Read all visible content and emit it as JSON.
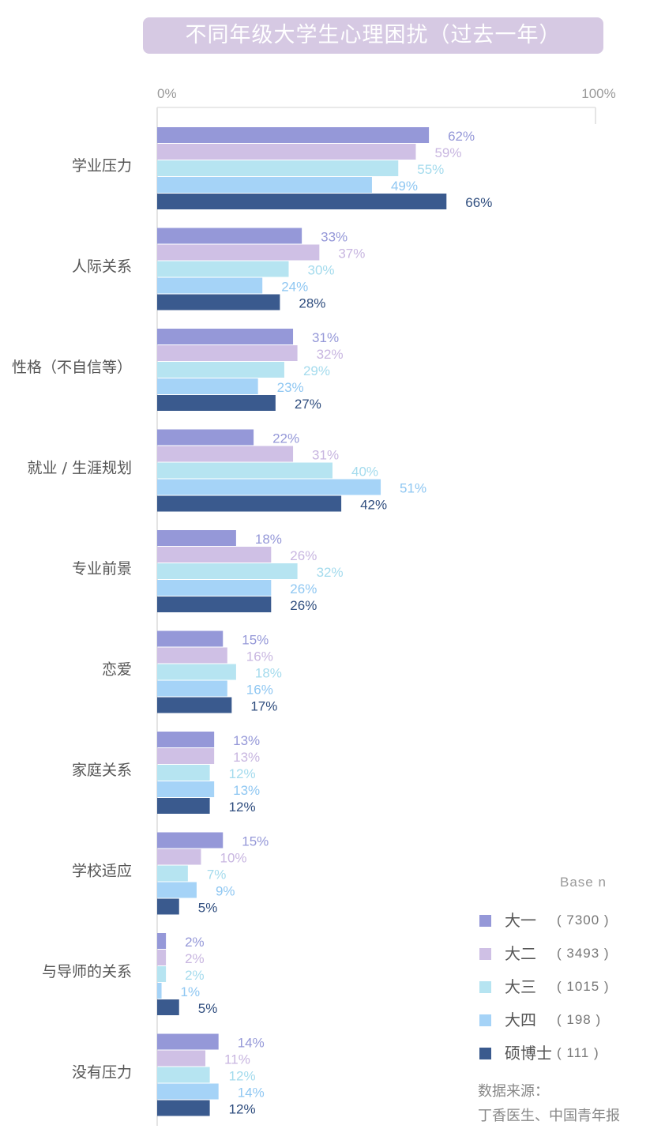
{
  "title": "不同年级大学生心理困扰（过去一年）",
  "chart_data": {
    "type": "bar",
    "orientation": "horizontal",
    "xlim": [
      0,
      100
    ],
    "tick_labels": [
      "0%",
      "100%"
    ],
    "categories": [
      "学业压力",
      "人际关系",
      "性格（不自信等）",
      "就业 / 生涯规划",
      "专业前景",
      "恋爱",
      "家庭关系",
      "学校适应",
      "与导师的关系",
      "没有压力"
    ],
    "series": [
      {
        "name": "大一",
        "n": "( 7300 )",
        "color": "#9598d8",
        "label_color": "#9598d8",
        "values": [
          62,
          33,
          31,
          22,
          18,
          15,
          13,
          15,
          2,
          14
        ]
      },
      {
        "name": "大二",
        "n": "( 3493 )",
        "color": "#cfc0e5",
        "label_color": "#c8b6e0",
        "values": [
          59,
          37,
          32,
          31,
          26,
          16,
          13,
          10,
          2,
          11
        ]
      },
      {
        "name": "大三",
        "n": "( 1015 )",
        "color": "#b6e4f1",
        "label_color": "#a4dbed",
        "values": [
          55,
          30,
          29,
          40,
          32,
          18,
          12,
          7,
          2,
          12
        ]
      },
      {
        "name": "大四",
        "n": "( 198 )",
        "color": "#a5d3f7",
        "label_color": "#8fc7f2",
        "values": [
          49,
          24,
          23,
          51,
          26,
          16,
          13,
          9,
          1,
          14
        ]
      },
      {
        "name": "硕博士",
        "n": "( 111 )",
        "color": "#3a5a8e",
        "label_color": "#2f4d7e",
        "values": [
          66,
          28,
          27,
          42,
          26,
          17,
          12,
          5,
          5,
          12
        ]
      }
    ],
    "legend_position": "bottom-right",
    "grid": false
  },
  "legend": {
    "header": "Base  n"
  },
  "source": {
    "line1": "数据来源：",
    "line2": "丁香医生、中国青年报"
  }
}
